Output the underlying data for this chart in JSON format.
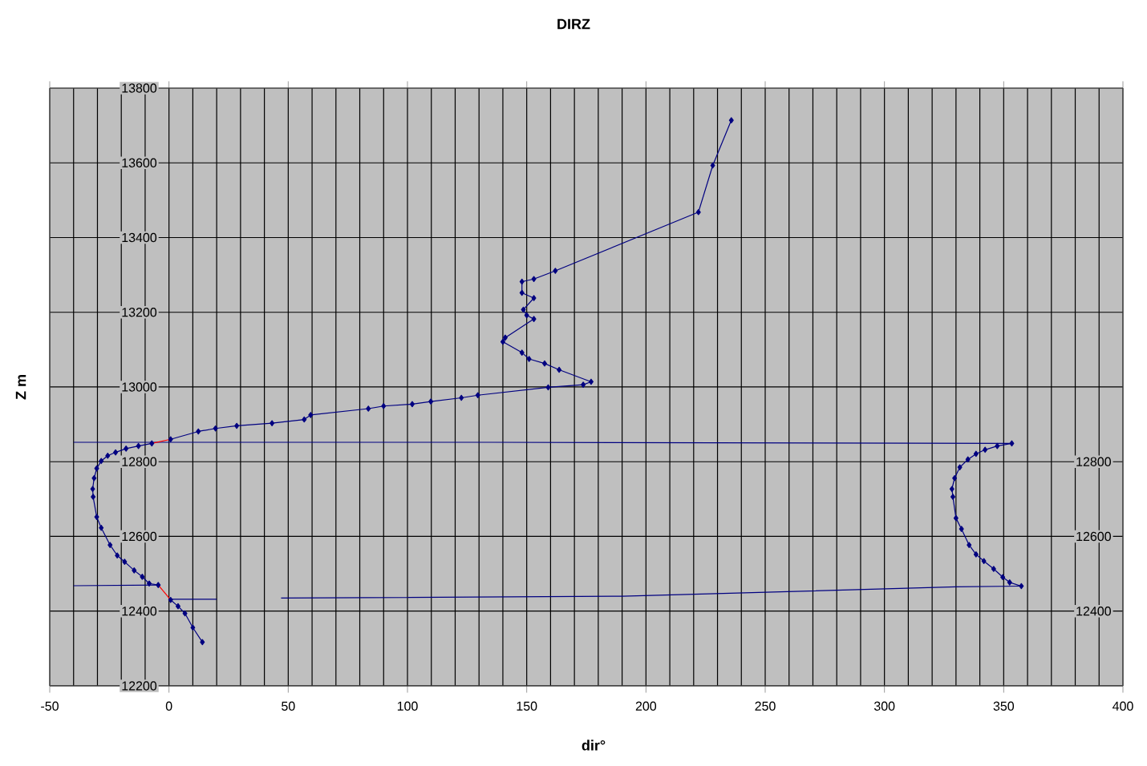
{
  "chart_data": {
    "type": "line",
    "title": "DIRZ",
    "xlabel": "dir°",
    "ylabel": "Z m",
    "xlim": [
      -50,
      400
    ],
    "xticks": [
      -50,
      0,
      50,
      100,
      150,
      200,
      250,
      300,
      350,
      400
    ],
    "ylim": [
      12200,
      13800
    ],
    "yticks": [
      12200,
      12400,
      12600,
      12800,
      13000,
      13200,
      13400,
      13600,
      13800
    ],
    "y2lim": [
      12200,
      13800
    ],
    "y2ticks": [
      12400,
      12600,
      12800
    ],
    "grid": true,
    "series": [
      {
        "color": "#000080",
        "marker": "diamond",
        "x": [
          235.8,
          228,
          222,
          162,
          153,
          148,
          148,
          153,
          148.6,
          150,
          153,
          141,
          140,
          148,
          151,
          157.5,
          163.6,
          177,
          173.7,
          159,
          129.5,
          122.6,
          109.8,
          102,
          90,
          83.6,
          59.4,
          56.7,
          43.2,
          28.4,
          19.5,
          12.3,
          0.7,
          null,
          -7.2,
          -12.8,
          -18,
          -22.4,
          -25.7,
          -28.4,
          -30.3,
          -31.4,
          -32,
          -31.8,
          -30.3,
          -28.4,
          -24.7,
          -21.7,
          -18.6,
          -14.6,
          -11.2,
          -8.3,
          -4.5,
          null,
          0.7,
          3.8,
          6.7,
          10,
          14
        ],
        "values": [
          13714,
          13593,
          13468,
          13311,
          13289,
          13282,
          13252,
          13238,
          13207,
          13192,
          13182,
          13132,
          13121,
          13092,
          13075,
          13063,
          13046,
          13014,
          13006,
          12999,
          12978,
          12971,
          12961,
          12954,
          12949,
          12942,
          12925,
          12913,
          12903,
          12896,
          12889,
          12881,
          12860,
          null,
          12849,
          12842,
          12835,
          12825,
          12816,
          12802,
          12782,
          12756,
          12727,
          12706,
          12652,
          12623,
          12577,
          12549,
          12532,
          12509,
          12492,
          12474,
          12470,
          null,
          12430,
          12413,
          12394,
          12356,
          12317
        ]
      },
      {
        "color": "#000080",
        "marker": "diamond",
        "x": [
          353.4,
          347.3,
          342.2,
          338.4,
          335,
          331.6,
          329.4,
          328.3,
          328.7,
          330,
          332.3,
          335.5,
          338.4,
          341.7,
          345.8,
          349.6,
          352.5,
          357.4
        ],
        "values": [
          12849,
          12842,
          12832,
          12821,
          12806,
          12785,
          12756,
          12727,
          12706,
          12649,
          12620,
          12577,
          12552,
          12534,
          12513,
          12491,
          12477,
          12467
        ]
      },
      {
        "color": "#000080",
        "marker": "none",
        "x": [
          -40,
          135,
          353.4
        ],
        "values": [
          12852,
          12852,
          12849
        ]
      },
      {
        "color": "#000080",
        "marker": "none",
        "x": [
          -40,
          -4.5,
          null,
          0.7,
          20,
          null,
          47,
          190,
          330,
          357.4
        ],
        "values": [
          12468,
          12470,
          null,
          12432,
          12432,
          null,
          12435,
          12440,
          12465,
          12467
        ]
      },
      {
        "color": "#ff0000",
        "marker": "none",
        "x": [
          0.7,
          -7.2,
          null,
          -4.5,
          0.7
        ],
        "values": [
          12860,
          12849,
          null,
          12470,
          12430
        ]
      }
    ]
  }
}
